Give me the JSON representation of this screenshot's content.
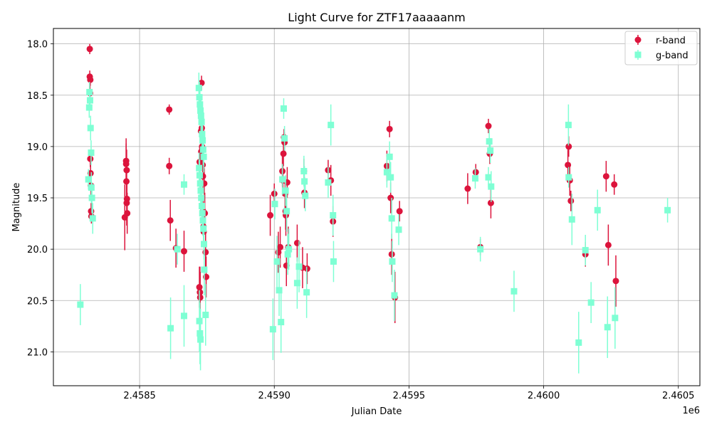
{
  "chart_data": {
    "type": "scatter",
    "title": "Light Curve for ZTF17aaaaanm",
    "xlabel": "Julian Date",
    "ylabel": "Magnitude",
    "x_offset_label": "1e6",
    "xlim": [
      2458180,
      2460580
    ],
    "ylim": [
      21.33,
      17.85
    ],
    "y_inverted": true,
    "grid": true,
    "legend_position": "top-right",
    "x_ticks": [
      2458500,
      2459000,
      2459500,
      2460000,
      2460500
    ],
    "x_tick_labels": [
      "2.4585",
      "2.4590",
      "2.4595",
      "2.4600",
      "2.4605"
    ],
    "y_ticks": [
      18.0,
      18.5,
      19.0,
      19.5,
      20.0,
      20.5,
      21.0
    ],
    "y_tick_labels": [
      "18.0",
      "18.5",
      "19.0",
      "19.5",
      "20.0",
      "20.5",
      "21.0"
    ],
    "series": [
      {
        "name": "r-band",
        "color": "#dc143c",
        "marker": "circle",
        "points": [
          [
            2458315,
            18.05,
            0.05
          ],
          [
            2458315,
            18.32,
            0.06
          ],
          [
            2458317,
            18.35,
            0.06
          ],
          [
            2458316,
            18.48,
            0.07
          ],
          [
            2458317,
            19.12,
            0.08
          ],
          [
            2458318,
            19.26,
            0.1
          ],
          [
            2458319,
            19.38,
            0.1
          ],
          [
            2458320,
            19.63,
            0.08
          ],
          [
            2458321,
            19.68,
            0.07
          ],
          [
            2458445,
            19.69,
            0.32
          ],
          [
            2458450,
            19.14,
            0.22
          ],
          [
            2458450,
            19.17,
            0.2
          ],
          [
            2458451,
            19.34,
            0.22
          ],
          [
            2458452,
            19.23,
            0.2
          ],
          [
            2458452,
            19.55,
            0.22
          ],
          [
            2458453,
            19.51,
            0.2
          ],
          [
            2458454,
            19.65,
            0.2
          ],
          [
            2458610,
            18.64,
            0.05
          ],
          [
            2458610,
            19.19,
            0.08
          ],
          [
            2458614,
            19.72,
            0.2
          ],
          [
            2458635,
            19.99,
            0.19
          ],
          [
            2458665,
            20.02,
            0.2
          ],
          [
            2458722,
            20.37,
            0.2
          ],
          [
            2458724,
            20.42,
            0.25
          ],
          [
            2458725,
            20.47,
            0.25
          ],
          [
            2458723,
            19.15,
            0.15
          ],
          [
            2458728,
            18.85,
            0.1
          ],
          [
            2458729,
            19.05,
            0.12
          ],
          [
            2458730,
            18.38,
            0.07
          ],
          [
            2458731,
            18.82,
            0.08
          ],
          [
            2458732,
            19.0,
            0.1
          ],
          [
            2458733,
            19.1,
            0.12
          ],
          [
            2458734,
            19.18,
            0.12
          ],
          [
            2458735,
            19.29,
            0.12
          ],
          [
            2458736,
            19.63,
            0.15
          ],
          [
            2458737,
            19.78,
            0.15
          ],
          [
            2458738,
            19.83,
            0.15
          ],
          [
            2458740,
            19.36,
            0.15
          ],
          [
            2458742,
            19.65,
            0.2
          ],
          [
            2458745,
            20.03,
            0.2
          ],
          [
            2458747,
            20.27,
            0.2
          ],
          [
            2458985,
            19.67,
            0.2
          ],
          [
            2459000,
            19.46,
            0.1
          ],
          [
            2459015,
            20.03,
            0.2
          ],
          [
            2459022,
            19.98,
            0.2
          ],
          [
            2459030,
            19.24,
            0.15
          ],
          [
            2459032,
            19.33,
            0.15
          ],
          [
            2459034,
            19.07,
            0.12
          ],
          [
            2459036,
            18.91,
            0.08
          ],
          [
            2459038,
            18.96,
            0.1
          ],
          [
            2459040,
            19.46,
            0.15
          ],
          [
            2459042,
            19.63,
            0.18
          ],
          [
            2459043,
            19.67,
            0.2
          ],
          [
            2459045,
            20.16,
            0.2
          ],
          [
            2459048,
            19.35,
            0.15
          ],
          [
            2459052,
            19.98,
            0.2
          ],
          [
            2459085,
            19.94,
            0.18
          ],
          [
            2459105,
            20.18,
            0.2
          ],
          [
            2459110,
            19.24,
            0.12
          ],
          [
            2459112,
            19.45,
            0.15
          ],
          [
            2459122,
            20.19,
            0.15
          ],
          [
            2459200,
            19.23,
            0.1
          ],
          [
            2459210,
            19.33,
            0.15
          ],
          [
            2459218,
            19.73,
            0.15
          ],
          [
            2459418,
            19.19,
            0.15
          ],
          [
            2459428,
            18.83,
            0.08
          ],
          [
            2459432,
            19.5,
            0.15
          ],
          [
            2459436,
            20.05,
            0.2
          ],
          [
            2459448,
            20.47,
            0.25
          ],
          [
            2459465,
            19.63,
            0.1
          ],
          [
            2459718,
            19.41,
            0.15
          ],
          [
            2459748,
            19.25,
            0.08
          ],
          [
            2459765,
            19.98,
            0.08
          ],
          [
            2459795,
            18.8,
            0.07
          ],
          [
            2459800,
            19.07,
            0.1
          ],
          [
            2459804,
            19.55,
            0.15
          ],
          [
            2460090,
            19.18,
            0.15
          ],
          [
            2460093,
            19.0,
            0.1
          ],
          [
            2460097,
            19.33,
            0.15
          ],
          [
            2460101,
            19.53,
            0.1
          ],
          [
            2460155,
            20.05,
            0.12
          ],
          [
            2460232,
            19.29,
            0.15
          ],
          [
            2460240,
            19.96,
            0.2
          ],
          [
            2460262,
            19.37,
            0.1
          ],
          [
            2460268,
            20.31,
            0.25
          ]
        ]
      },
      {
        "name": "g-band",
        "color": "#7fffd4",
        "marker": "square",
        "points": [
          [
            2458280,
            20.54,
            0.2
          ],
          [
            2458310,
            19.32,
            0.1
          ],
          [
            2458313,
            18.62,
            0.1
          ],
          [
            2458314,
            18.47,
            0.1
          ],
          [
            2458316,
            18.55,
            0.1
          ],
          [
            2458318,
            18.82,
            0.12
          ],
          [
            2458320,
            19.06,
            0.12
          ],
          [
            2458321,
            19.4,
            0.15
          ],
          [
            2458323,
            19.5,
            0.15
          ],
          [
            2458326,
            19.7,
            0.15
          ],
          [
            2458615,
            20.77,
            0.3
          ],
          [
            2458640,
            20.0,
            0.15
          ],
          [
            2458665,
            19.37,
            0.1
          ],
          [
            2458665,
            20.65,
            0.3
          ],
          [
            2458720,
            18.43,
            0.15
          ],
          [
            2458722,
            18.52,
            0.15
          ],
          [
            2458724,
            18.59,
            0.15
          ],
          [
            2458726,
            18.65,
            0.15
          ],
          [
            2458728,
            18.7,
            0.15
          ],
          [
            2458730,
            18.76,
            0.15
          ],
          [
            2458732,
            18.88,
            0.15
          ],
          [
            2458734,
            18.94,
            0.15
          ],
          [
            2458736,
            19.03,
            0.15
          ],
          [
            2458738,
            19.1,
            0.15
          ],
          [
            2458721,
            19.21,
            0.15
          ],
          [
            2458723,
            19.28,
            0.15
          ],
          [
            2458725,
            19.36,
            0.15
          ],
          [
            2458727,
            19.43,
            0.15
          ],
          [
            2458729,
            19.5,
            0.15
          ],
          [
            2458731,
            19.58,
            0.15
          ],
          [
            2458733,
            19.65,
            0.15
          ],
          [
            2458735,
            19.72,
            0.15
          ],
          [
            2458737,
            19.8,
            0.15
          ],
          [
            2458739,
            19.95,
            0.15
          ],
          [
            2458722,
            20.7,
            0.3
          ],
          [
            2458724,
            20.82,
            0.3
          ],
          [
            2458726,
            20.88,
            0.3
          ],
          [
            2458740,
            20.2,
            0.25
          ],
          [
            2458745,
            20.64,
            0.3
          ],
          [
            2458995,
            20.78,
            0.3
          ],
          [
            2459002,
            19.56,
            0.15
          ],
          [
            2459010,
            20.12,
            0.25
          ],
          [
            2459018,
            20.4,
            0.25
          ],
          [
            2459025,
            20.71,
            0.3
          ],
          [
            2459030,
            19.32,
            0.15
          ],
          [
            2459035,
            18.63,
            0.1
          ],
          [
            2459038,
            18.92,
            0.12
          ],
          [
            2459042,
            19.43,
            0.15
          ],
          [
            2459046,
            19.63,
            0.2
          ],
          [
            2459050,
            20.05,
            0.2
          ],
          [
            2459054,
            20.0,
            0.2
          ],
          [
            2459085,
            20.33,
            0.25
          ],
          [
            2459092,
            20.17,
            0.25
          ],
          [
            2459110,
            19.24,
            0.15
          ],
          [
            2459112,
            19.34,
            0.15
          ],
          [
            2459115,
            19.48,
            0.15
          ],
          [
            2459120,
            20.42,
            0.25
          ],
          [
            2459200,
            19.35,
            0.15
          ],
          [
            2459210,
            18.79,
            0.2
          ],
          [
            2459218,
            19.67,
            0.2
          ],
          [
            2459220,
            20.12,
            0.2
          ],
          [
            2459418,
            19.25,
            0.15
          ],
          [
            2459428,
            19.1,
            0.15
          ],
          [
            2459432,
            19.3,
            0.15
          ],
          [
            2459436,
            19.7,
            0.2
          ],
          [
            2459438,
            20.12,
            0.2
          ],
          [
            2459446,
            20.45,
            0.25
          ],
          [
            2459462,
            19.81,
            0.15
          ],
          [
            2459746,
            19.31,
            0.1
          ],
          [
            2459765,
            20.0,
            0.12
          ],
          [
            2459795,
            19.3,
            0.1
          ],
          [
            2459798,
            18.95,
            0.12
          ],
          [
            2459802,
            19.04,
            0.12
          ],
          [
            2459805,
            19.39,
            0.15
          ],
          [
            2459890,
            20.41,
            0.2
          ],
          [
            2460092,
            18.79,
            0.2
          ],
          [
            2460093,
            19.3,
            0.1
          ],
          [
            2460105,
            19.71,
            0.25
          ],
          [
            2460130,
            20.91,
            0.3
          ],
          [
            2460155,
            20.01,
            0.15
          ],
          [
            2460176,
            20.52,
            0.2
          ],
          [
            2460200,
            19.62,
            0.2
          ],
          [
            2460237,
            20.76,
            0.3
          ],
          [
            2460265,
            20.67,
            0.3
          ],
          [
            2460460,
            19.62,
            0.12
          ]
        ]
      }
    ]
  }
}
